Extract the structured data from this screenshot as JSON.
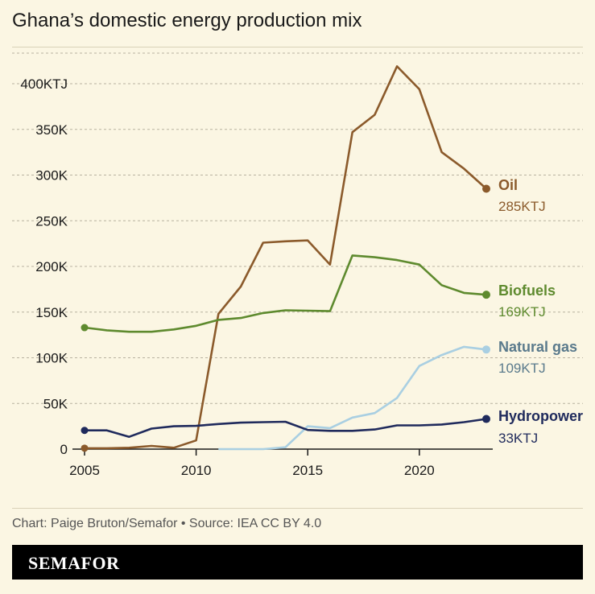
{
  "title": "Ghana’s domestic energy production mix",
  "source": "Chart: Paige Bruton/Semafor • Source: IEA CC BY 4.0",
  "brand": "SEMAFOR",
  "chart_data": {
    "type": "line",
    "title": "Ghana’s domestic energy production mix",
    "xlabel": "",
    "ylabel": "",
    "xlim": [
      2005,
      2023
    ],
    "ylim": [
      0,
      400000
    ],
    "x_ticks": [
      "2005",
      "2010",
      "2015",
      "2020"
    ],
    "y_ticks": [
      "0",
      "50K",
      "100K",
      "150K",
      "200K",
      "250K",
      "300K",
      "350K",
      "400KTJ"
    ],
    "grid": true,
    "x": [
      2005,
      2006,
      2007,
      2008,
      2009,
      2010,
      2011,
      2012,
      2013,
      2014,
      2015,
      2016,
      2017,
      2018,
      2019,
      2020,
      2021,
      2022,
      2023
    ],
    "series": [
      {
        "name": "Oil",
        "end_label": "285KTJ",
        "color": "#8b5a2b",
        "values": [
          1000,
          1000,
          1500,
          3500,
          1500,
          9500,
          148000,
          178000,
          226000,
          227500,
          228500,
          202000,
          347000,
          366000,
          419000,
          394000,
          325000,
          307000,
          285000
        ]
      },
      {
        "name": "Biofuels",
        "end_label": "169KTJ",
        "color": "#5e8a2e",
        "values": [
          133000,
          130000,
          128500,
          128500,
          131000,
          135000,
          141500,
          143500,
          149000,
          152000,
          151500,
          151000,
          212000,
          210000,
          207000,
          202000,
          179500,
          171000,
          169000
        ]
      },
      {
        "name": "Natural gas",
        "end_label": "109KTJ",
        "color": "#a9cfe2",
        "label_color": "#5a7a8c",
        "values": [
          null,
          null,
          null,
          null,
          null,
          null,
          0,
          0,
          0,
          2000,
          25000,
          23000,
          34500,
          39500,
          56000,
          91000,
          103000,
          112000,
          109000
        ]
      },
      {
        "name": "Hydropower",
        "end_label": "33KTJ",
        "color": "#1f2a5c",
        "values": [
          20500,
          20500,
          13500,
          22500,
          25000,
          25500,
          27500,
          29000,
          29500,
          30000,
          21000,
          20000,
          20000,
          21500,
          26000,
          26000,
          27000,
          29500,
          33000
        ]
      }
    ]
  }
}
